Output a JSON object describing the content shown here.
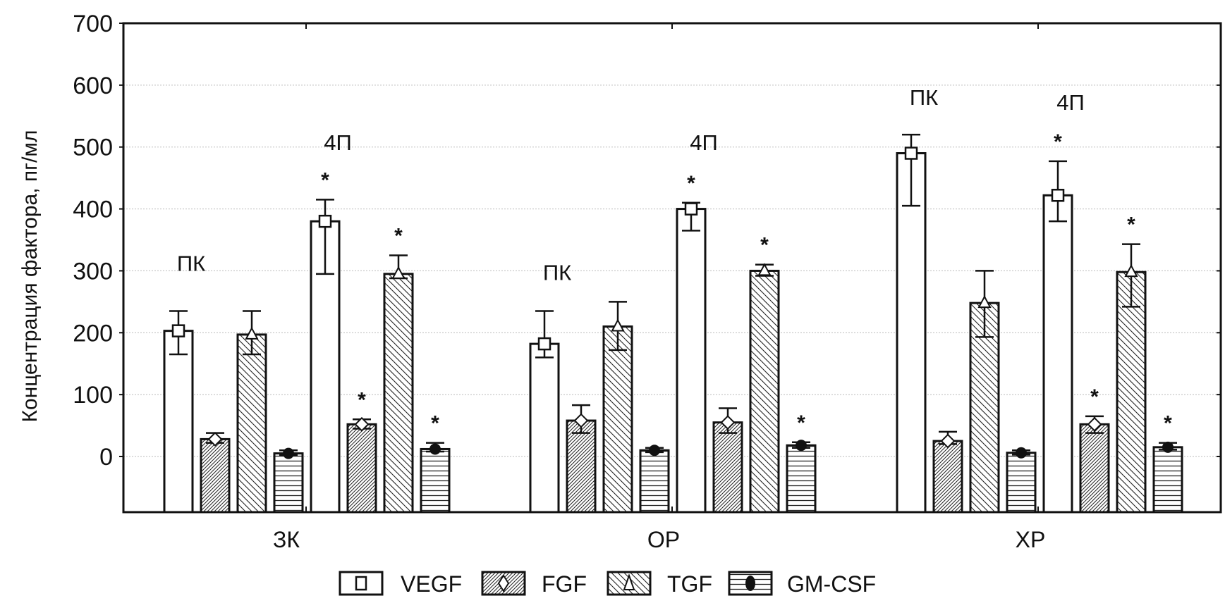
{
  "chart_data": {
    "type": "bar",
    "title": "",
    "xlabel": "",
    "ylabel": "Концентрация фактора, пг/мл",
    "ylim": [
      -90,
      700
    ],
    "yticks": [
      0,
      100,
      200,
      300,
      400,
      500,
      600,
      700
    ],
    "ytick_labels": [
      "0",
      "100",
      "200",
      "300",
      "400",
      "500",
      "600",
      "700"
    ],
    "grid": true,
    "legend_position": "bottom-center",
    "categories": [
      "ЗК",
      "ОР",
      "ХР"
    ],
    "subgroups": [
      "ПК",
      "4П"
    ],
    "series": [
      {
        "name": "VEGF",
        "marker": "square",
        "pattern": "none",
        "values": [
          [
            203,
            380
          ],
          [
            182,
            400
          ],
          [
            490,
            422
          ]
        ],
        "err_low": [
          [
            165,
            295
          ],
          [
            160,
            365
          ],
          [
            405,
            380
          ]
        ],
        "err_high": [
          [
            235,
            415
          ],
          [
            235,
            410
          ],
          [
            520,
            477
          ]
        ],
        "significant": [
          [
            false,
            true
          ],
          [
            false,
            true
          ],
          [
            false,
            true
          ]
        ]
      },
      {
        "name": "FGF",
        "marker": "diamond",
        "pattern": "dense-diagonal",
        "values": [
          [
            28,
            52
          ],
          [
            58,
            55
          ],
          [
            25,
            52
          ]
        ],
        "err_low": [
          [
            22,
            45
          ],
          [
            38,
            38
          ],
          [
            20,
            38
          ]
        ],
        "err_high": [
          [
            38,
            60
          ],
          [
            83,
            78
          ],
          [
            40,
            65
          ]
        ],
        "significant": [
          [
            false,
            true
          ],
          [
            false,
            false
          ],
          [
            false,
            true
          ]
        ]
      },
      {
        "name": "TGF",
        "marker": "triangle",
        "pattern": "back-diagonal",
        "values": [
          [
            197,
            295
          ],
          [
            210,
            300
          ],
          [
            248,
            298
          ]
        ],
        "err_low": [
          [
            165,
            288
          ],
          [
            172,
            292
          ],
          [
            193,
            242
          ]
        ],
        "err_high": [
          [
            235,
            325
          ],
          [
            250,
            310
          ],
          [
            300,
            343
          ]
        ],
        "significant": [
          [
            false,
            true
          ],
          [
            false,
            true
          ],
          [
            false,
            true
          ]
        ]
      },
      {
        "name": "GM-CSF",
        "marker": "circle",
        "pattern": "horizontal",
        "values": [
          [
            5,
            12
          ],
          [
            10,
            18
          ],
          [
            6,
            15
          ]
        ],
        "err_low": [
          [
            2,
            8
          ],
          [
            7,
            14
          ],
          [
            3,
            11
          ]
        ],
        "err_high": [
          [
            10,
            22
          ],
          [
            14,
            23
          ],
          [
            10,
            22
          ]
        ],
        "significant": [
          [
            false,
            true
          ],
          [
            false,
            true
          ],
          [
            false,
            true
          ]
        ]
      }
    ],
    "annotations": [
      {
        "text": "ПК",
        "category": "ЗК",
        "subgroup": "ПК",
        "value": 300
      },
      {
        "text": "4П",
        "category": "ЗК",
        "subgroup": "4П",
        "value": 495
      },
      {
        "text": "ПК",
        "category": "ОР",
        "subgroup": "ПК",
        "value": 285
      },
      {
        "text": "4П",
        "category": "ОР",
        "subgroup": "4П",
        "value": 495
      },
      {
        "text": "ПК",
        "category": "ХР",
        "subgroup": "ПК",
        "value": 568
      },
      {
        "text": "4П",
        "category": "ХР",
        "subgroup": "4П",
        "value": 560
      }
    ],
    "significance_marker": "*"
  }
}
